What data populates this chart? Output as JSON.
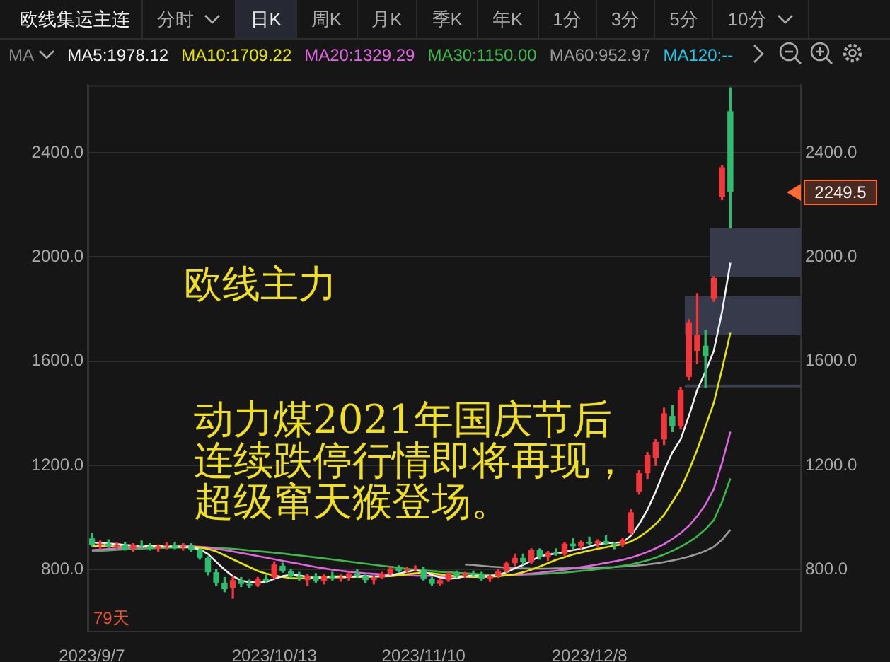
{
  "chart_data": {
    "type": "candlestick",
    "title": "欧线集运主连",
    "categories": [
      "2023/9/7",
      null,
      null,
      null,
      null,
      null,
      null,
      null,
      null,
      null,
      null,
      null,
      null,
      null,
      null,
      null,
      null,
      null,
      null,
      null,
      null,
      null,
      "2023/10/13",
      null,
      null,
      null,
      null,
      null,
      null,
      null,
      null,
      null,
      null,
      null,
      null,
      null,
      null,
      null,
      null,
      null,
      "2023/11/10",
      null,
      null,
      null,
      null,
      null,
      null,
      null,
      null,
      null,
      null,
      null,
      null,
      null,
      null,
      null,
      null,
      null,
      null,
      null,
      "2023/12/8",
      null,
      null,
      null,
      null,
      null,
      null,
      null,
      null,
      null,
      null,
      null,
      null,
      null,
      null,
      null,
      null,
      null,
      null,
      null,
      null,
      null,
      null,
      null,
      null,
      null
    ],
    "ohlc": [
      [
        920,
        940,
        890,
        895
      ],
      [
        895,
        910,
        880,
        900
      ],
      [
        900,
        915,
        885,
        890
      ],
      [
        890,
        905,
        880,
        895
      ],
      [
        895,
        905,
        875,
        880
      ],
      [
        880,
        900,
        870,
        895
      ],
      [
        895,
        910,
        885,
        890
      ],
      [
        890,
        900,
        875,
        880
      ],
      [
        880,
        895,
        870,
        890
      ],
      [
        890,
        905,
        880,
        895
      ],
      [
        895,
        905,
        880,
        885
      ],
      [
        885,
        900,
        875,
        890
      ],
      [
        890,
        900,
        870,
        875
      ],
      [
        875,
        880,
        840,
        845
      ],
      [
        845,
        850,
        780,
        790
      ],
      [
        790,
        800,
        740,
        750
      ],
      [
        750,
        770,
        715,
        725
      ],
      [
        730,
        775,
        690,
        760
      ],
      [
        760,
        770,
        735,
        745
      ],
      [
        745,
        760,
        730,
        740
      ],
      [
        740,
        770,
        735,
        765
      ],
      [
        765,
        780,
        750,
        755
      ],
      [
        770,
        830,
        765,
        820
      ],
      [
        815,
        825,
        790,
        795
      ],
      [
        795,
        800,
        770,
        775
      ],
      [
        775,
        790,
        760,
        770
      ],
      [
        760,
        780,
        740,
        775
      ],
      [
        775,
        785,
        750,
        755
      ],
      [
        755,
        780,
        745,
        775
      ],
      [
        775,
        790,
        760,
        765
      ],
      [
        765,
        780,
        755,
        770
      ],
      [
        770,
        790,
        760,
        785
      ],
      [
        785,
        800,
        770,
        775
      ],
      [
        775,
        780,
        750,
        760
      ],
      [
        760,
        775,
        745,
        770
      ],
      [
        770,
        790,
        765,
        785
      ],
      [
        785,
        810,
        780,
        805
      ],
      [
        805,
        815,
        790,
        795
      ],
      [
        795,
        810,
        790,
        800
      ],
      [
        800,
        815,
        795,
        805
      ],
      [
        800,
        810,
        760,
        765
      ],
      [
        765,
        770,
        740,
        745
      ],
      [
        745,
        765,
        740,
        760
      ],
      [
        760,
        790,
        755,
        785
      ],
      [
        785,
        795,
        770,
        775
      ],
      [
        775,
        790,
        770,
        785
      ],
      [
        785,
        795,
        775,
        780
      ],
      [
        780,
        790,
        760,
        765
      ],
      [
        765,
        780,
        755,
        775
      ],
      [
        775,
        800,
        770,
        795
      ],
      [
        795,
        830,
        790,
        825
      ],
      [
        825,
        860,
        815,
        845
      ],
      [
        845,
        860,
        820,
        830
      ],
      [
        830,
        880,
        825,
        875
      ],
      [
        875,
        880,
        840,
        850
      ],
      [
        850,
        870,
        835,
        865
      ],
      [
        865,
        880,
        855,
        860
      ],
      [
        860,
        905,
        855,
        900
      ],
      [
        900,
        920,
        880,
        890
      ],
      [
        890,
        910,
        880,
        905
      ],
      [
        905,
        925,
        895,
        900
      ],
      [
        900,
        915,
        885,
        910
      ],
      [
        910,
        930,
        895,
        900
      ],
      [
        900,
        905,
        880,
        895
      ],
      [
        895,
        920,
        890,
        915
      ],
      [
        940,
        1030,
        935,
        1020
      ],
      [
        1100,
        1180,
        1090,
        1170
      ],
      [
        1170,
        1250,
        1150,
        1240
      ],
      [
        1230,
        1300,
        1200,
        1290
      ],
      [
        1300,
        1420,
        1280,
        1400
      ],
      [
        1390,
        1430,
        1330,
        1350
      ],
      [
        1350,
        1500,
        1340,
        1490
      ],
      [
        1540,
        1760,
        1530,
        1750
      ],
      [
        1640,
        1860,
        1590,
        1700
      ],
      [
        1660,
        1720,
        1500,
        1620
      ],
      [
        1840,
        1925,
        1830,
        1920
      ],
      [
        2230,
        2350,
        2220,
        2345
      ],
      [
        2560,
        2650,
        2112,
        2249.5
      ],
      null,
      null,
      null,
      null,
      null,
      null,
      null,
      null
    ],
    "colors": [
      "#2ebd6e",
      "#f2373c",
      "#2ebd6e",
      "#f2373c",
      "#2ebd6e",
      "#f2373c",
      "#2ebd6e",
      "#2ebd6e",
      "#f2373c",
      "#f2373c",
      "#2ebd6e",
      "#f2373c",
      "#2ebd6e",
      "#2ebd6e",
      "#2ebd6e",
      "#2ebd6e",
      "#2ebd6e",
      "#f2373c",
      "#2ebd6e",
      "#2ebd6e",
      "#f2373c",
      "#2ebd6e",
      "#f2373c",
      "#2ebd6e",
      "#2ebd6e",
      "#2ebd6e",
      "#f2373c",
      "#2ebd6e",
      "#f2373c",
      "#2ebd6e",
      "#f2373c",
      "#f2373c",
      "#2ebd6e",
      "#2ebd6e",
      "#f2373c",
      "#f2373c",
      "#f2373c",
      "#2ebd6e",
      "#f2373c",
      "#f2373c",
      "#2ebd6e",
      "#2ebd6e",
      "#f2373c",
      "#f2373c",
      "#2ebd6e",
      "#f2373c",
      "#2ebd6e",
      "#2ebd6e",
      "#f2373c",
      "#f2373c",
      "#f2373c",
      "#f2373c",
      "#2ebd6e",
      "#f2373c",
      "#2ebd6e",
      "#f2373c",
      "#2ebd6e",
      "#f2373c",
      "#2ebd6e",
      "#f2373c",
      "#2ebd6e",
      "#f2373c",
      "#2ebd6e",
      "#2ebd6e",
      "#f2373c",
      "#f2373c",
      "#f2373c",
      "#f2373c",
      "#f2373c",
      "#f2373c",
      "#2ebd6e",
      "#f2373c",
      "#f2373c",
      "#f2373c",
      "#2ebd6e",
      "#f2373c",
      "#f2373c",
      "#2ebd6e",
      null,
      null,
      null,
      null,
      null,
      null,
      null,
      null
    ],
    "series": [
      {
        "name": "MA5:1978.12",
        "type": "line",
        "color": "#f0f0f0",
        "values": [
          905,
          902,
          900,
          898,
          895,
          893,
          892,
          890,
          889,
          888,
          888,
          887,
          885,
          878,
          860,
          830,
          800,
          775,
          758,
          752,
          750,
          752,
          765,
          775,
          780,
          778,
          772,
          768,
          770,
          772,
          770,
          772,
          775,
          776,
          774,
          775,
          778,
          785,
          792,
          798,
          792,
          780,
          770,
          765,
          768,
          775,
          778,
          776,
          775,
          780,
          790,
          805,
          818,
          835,
          850,
          858,
          862,
          868,
          875,
          880,
          888,
          898,
          902,
          903,
          905,
          930,
          975,
          1030,
          1100,
          1180,
          1250,
          1300,
          1390,
          1490,
          1560,
          1640,
          1790,
          1978.12,
          null,
          null,
          null,
          null,
          null,
          null,
          null,
          null
        ]
      },
      {
        "name": "MA10:1709.22",
        "type": "line",
        "color": "#e6e600",
        "values": [
          890,
          890,
          891,
          892,
          892,
          893,
          893,
          892,
          891,
          890,
          889,
          888,
          887,
          885,
          880,
          870,
          855,
          840,
          825,
          810,
          795,
          785,
          778,
          772,
          768,
          766,
          768,
          770,
          772,
          774,
          774,
          773,
          772,
          772,
          773,
          774,
          775,
          778,
          782,
          786,
          788,
          786,
          782,
          778,
          775,
          773,
          772,
          772,
          773,
          775,
          778,
          782,
          790,
          800,
          812,
          825,
          838,
          848,
          858,
          866,
          873,
          880,
          886,
          892,
          898,
          908,
          925,
          948,
          975,
          1010,
          1060,
          1110,
          1180,
          1260,
          1350,
          1440,
          1570,
          1709.22,
          null,
          null,
          null,
          null,
          null,
          null,
          null,
          null
        ]
      },
      {
        "name": "MA20:1329.29",
        "type": "line",
        "color": "#e066e0",
        "values": [
          875,
          877,
          879,
          881,
          883,
          885,
          886,
          887,
          888,
          889,
          889,
          890,
          890,
          888,
          885,
          880,
          875,
          870,
          864,
          858,
          852,
          846,
          840,
          834,
          828,
          822,
          816,
          810,
          805,
          800,
          796,
          792,
          789,
          786,
          784,
          782,
          780,
          779,
          778,
          777,
          776,
          776,
          775,
          775,
          775,
          775,
          775,
          776,
          776,
          777,
          778,
          780,
          782,
          785,
          788,
          792,
          796,
          800,
          805,
          810,
          815,
          820,
          826,
          832,
          838,
          846,
          856,
          868,
          882,
          898,
          918,
          940,
          968,
          1005,
          1050,
          1110,
          1210,
          1329.29,
          null,
          null,
          null,
          null,
          null,
          null,
          null,
          null
        ]
      },
      {
        "name": "MA30:1150.00",
        "type": "line",
        "color": "#3cb84a",
        "values": [
          870,
          872,
          874,
          876,
          878,
          880,
          881,
          882,
          883,
          884,
          885,
          885,
          886,
          886,
          885,
          884,
          882,
          880,
          877,
          874,
          871,
          868,
          865,
          862,
          858,
          855,
          851,
          847,
          843,
          839,
          835,
          831,
          827,
          823,
          819,
          815,
          811,
          807,
          803,
          800,
          797,
          795,
          792,
          790,
          788,
          786,
          784,
          782,
          781,
          780,
          780,
          780,
          781,
          782,
          783,
          785,
          787,
          789,
          792,
          795,
          798,
          802,
          806,
          810,
          815,
          820,
          828,
          836,
          846,
          858,
          872,
          888,
          906,
          928,
          955,
          990,
          1060,
          1150,
          null,
          null,
          null,
          null,
          null,
          null,
          null,
          null
        ]
      },
      {
        "name": "MA60:952.97",
        "type": "line",
        "color": "#9a9a9a",
        "values": [
          null,
          null,
          null,
          null,
          null,
          null,
          null,
          null,
          null,
          null,
          null,
          null,
          null,
          null,
          null,
          null,
          null,
          null,
          null,
          null,
          null,
          null,
          null,
          null,
          null,
          null,
          null,
          null,
          null,
          null,
          null,
          null,
          null,
          null,
          null,
          null,
          null,
          null,
          null,
          null,
          null,
          null,
          null,
          null,
          null,
          820,
          818,
          815,
          812,
          810,
          808,
          806,
          805,
          804,
          804,
          804,
          805,
          805,
          806,
          806,
          807,
          808,
          809,
          810,
          812,
          814,
          817,
          820,
          824,
          829,
          835,
          842,
          850,
          860,
          872,
          888,
          915,
          952.97,
          null,
          null,
          null,
          null,
          null,
          null,
          null,
          null
        ]
      }
    ],
    "ylim": [
      565,
      2660
    ],
    "yticks": [
      {
        "value": 800,
        "label": "800.0"
      },
      {
        "value": 1200,
        "label": "1200.0"
      },
      {
        "value": 1600,
        "label": "1600.0"
      },
      {
        "value": 2000,
        "label": "2000.0"
      },
      {
        "value": 2400,
        "label": "2400.0"
      }
    ],
    "y2lim": [
      565,
      2660
    ],
    "y2ticks": [
      {
        "value": 800,
        "label": "800.0"
      },
      {
        "value": 1200,
        "label": "1200.0"
      },
      {
        "value": 1600,
        "label": "1600.0"
      },
      {
        "value": 2000,
        "label": "2000.0"
      },
      {
        "value": 2400,
        "label": "2400.0"
      }
    ],
    "bands": [
      {
        "axis": "y",
        "from": 1925,
        "to": 2112,
        "color": "#363a4a"
      },
      {
        "axis": "y",
        "from": 1700,
        "to": 1850,
        "color": "#363a4a"
      }
    ],
    "ref_lines": [
      {
        "axis": "y",
        "value": 1505,
        "color": "#3a3e4e"
      }
    ],
    "grid": "y",
    "legend": "top",
    "marker": "none",
    "line_style": "solid",
    "annotations": [
      "欧线主力",
      "动力煤2021年国庆节后连续跌停行情即将再现，超级窜天猴登场。",
      "79天",
      "2249.5",
      "分时",
      "日K",
      "周K",
      "月K",
      "季K",
      "年K",
      "1分",
      "3分",
      "5分",
      "10分",
      "MA",
      "MA120:--"
    ]
  }
}
